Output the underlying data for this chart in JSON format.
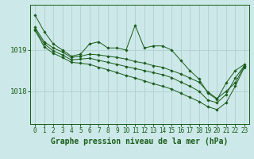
{
  "bg_color": "#cce8e8",
  "grid_color": "#aacccc",
  "line_color": "#1a5c1a",
  "marker_color": "#1a5c1a",
  "xlabel": "Graphe pression niveau de la mer (hPa)",
  "xlabel_fontsize": 7,
  "tick_fontsize": 5.5,
  "hours": [
    0,
    1,
    2,
    3,
    4,
    5,
    6,
    7,
    8,
    9,
    10,
    11,
    12,
    13,
    14,
    15,
    16,
    17,
    18,
    19,
    20,
    21,
    22,
    23
  ],
  "line1": [
    1019.85,
    1019.45,
    1019.15,
    1019.0,
    1018.85,
    1018.9,
    1019.15,
    1019.2,
    1019.05,
    1019.05,
    1019.0,
    1019.6,
    1019.05,
    1019.1,
    1019.1,
    1019.0,
    1018.75,
    1018.5,
    1018.3,
    1017.95,
    1017.8,
    1018.2,
    1018.5,
    1018.65
  ],
  "line2": [
    1019.55,
    1019.2,
    1019.05,
    1018.95,
    1018.82,
    1018.85,
    1018.9,
    1018.88,
    1018.85,
    1018.82,
    1018.78,
    1018.72,
    1018.68,
    1018.62,
    1018.58,
    1018.5,
    1018.42,
    1018.32,
    1018.22,
    1017.98,
    1017.82,
    1018.0,
    1018.2,
    1018.62
  ],
  "line3": [
    1019.5,
    1019.15,
    1018.98,
    1018.88,
    1018.76,
    1018.78,
    1018.8,
    1018.75,
    1018.7,
    1018.65,
    1018.6,
    1018.55,
    1018.5,
    1018.45,
    1018.4,
    1018.33,
    1018.22,
    1018.12,
    1018.0,
    1017.78,
    1017.72,
    1017.92,
    1018.32,
    1018.62
  ],
  "line4": [
    1019.48,
    1019.08,
    1018.92,
    1018.82,
    1018.7,
    1018.68,
    1018.65,
    1018.58,
    1018.52,
    1018.45,
    1018.38,
    1018.32,
    1018.25,
    1018.18,
    1018.12,
    1018.05,
    1017.95,
    1017.85,
    1017.75,
    1017.62,
    1017.55,
    1017.72,
    1018.12,
    1018.58
  ],
  "yticks": [
    1018,
    1019
  ],
  "ylim": [
    1017.2,
    1020.1
  ],
  "xlim": [
    -0.5,
    23.5
  ]
}
